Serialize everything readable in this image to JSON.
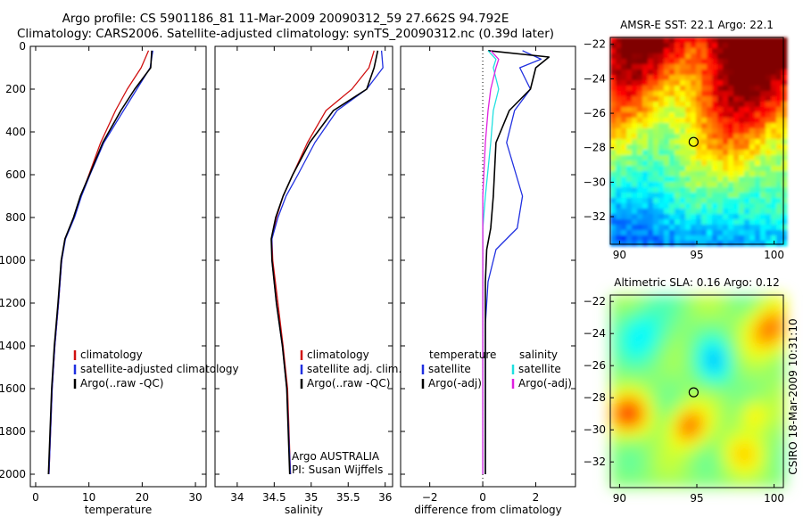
{
  "header": {
    "title_line1": "Argo profile: CS 5901186_81 11-Mar-2009 20090312_59 27.662S 94.792E",
    "title_line2": "Climatology: CARS2006. Satellite-adjusted climatology: synTS_20090312.nc (0.39d later)"
  },
  "colors": {
    "climatology": "#d01010",
    "satellite": "#2030e0",
    "argo": "#000000",
    "satellite_salinity": "#20e0e0",
    "argo_salinity_adj": "#e020e0"
  },
  "chart_data": [
    {
      "name": "temperature_panel",
      "type": "line",
      "xlabel": "temperature",
      "ylabel": "",
      "xlim": [
        -1,
        32
      ],
      "ylim": [
        2050,
        0
      ],
      "xticks": [
        0,
        10,
        20,
        30
      ],
      "yticks": [
        0,
        200,
        400,
        600,
        800,
        1000,
        1200,
        1400,
        1600,
        1800,
        2000
      ],
      "legend_position": "middle-center",
      "legend": [
        "climatology",
        "satellite-adjusted climatology",
        "Argo(..raw -QC)"
      ],
      "series": [
        {
          "name": "climatology",
          "color_key": "climatology",
          "x": [
            21.2,
            19.8,
            17.2,
            15.0,
            12.2,
            10.0,
            8.5,
            7.2,
            5.5,
            4.9,
            4.3,
            3.6,
            3.1,
            2.8,
            2.5
          ],
          "y": [
            20,
            100,
            200,
            300,
            450,
            600,
            700,
            800,
            900,
            1000,
            1200,
            1400,
            1600,
            1800,
            2000
          ]
        },
        {
          "name": "satellite-adjusted climatology",
          "color_key": "satellite",
          "x": [
            22.0,
            21.5,
            19.0,
            16.5,
            12.8,
            10.2,
            8.6,
            7.3,
            5.6,
            4.9,
            4.3,
            3.6,
            3.1,
            2.8,
            2.5
          ],
          "y": [
            20,
            100,
            200,
            300,
            450,
            600,
            700,
            800,
            900,
            1000,
            1200,
            1400,
            1600,
            1800,
            2000
          ]
        },
        {
          "name": "Argo(..raw -QC)",
          "color_key": "argo",
          "x": [
            21.8,
            21.6,
            18.6,
            16.0,
            12.6,
            10.1,
            8.4,
            7.1,
            5.5,
            4.8,
            4.2,
            3.5,
            3.0,
            2.7,
            2.4
          ],
          "y": [
            20,
            100,
            200,
            300,
            450,
            600,
            700,
            800,
            900,
            1000,
            1200,
            1400,
            1600,
            1800,
            2000
          ]
        }
      ]
    },
    {
      "name": "salinity_panel",
      "type": "line",
      "xlabel": "salinity",
      "ylabel": "",
      "xlim": [
        33.7,
        36.1
      ],
      "ylim": [
        2050,
        0
      ],
      "xticks": [
        34,
        34.5,
        35,
        35.5,
        36
      ],
      "xtick_labels": [
        "34",
        "34.5",
        "35",
        "35.5",
        "36"
      ],
      "legend_position": "middle-right",
      "legend": [
        "climatology",
        "satellite adj. clim.",
        "Argo(..raw -QC)"
      ],
      "annotation": [
        "Argo AUSTRALIA",
        "PI: Susan Wijffels"
      ],
      "series": [
        {
          "name": "climatology",
          "color_key": "climatology",
          "x": [
            35.85,
            35.78,
            35.55,
            35.2,
            34.95,
            34.75,
            34.62,
            34.53,
            34.47,
            34.48,
            34.55,
            34.62,
            34.68,
            34.72
          ],
          "y": [
            20,
            100,
            200,
            300,
            450,
            600,
            700,
            800,
            900,
            1000,
            1200,
            1400,
            1600,
            2000
          ]
        },
        {
          "name": "satellite adj. clim.",
          "color_key": "satellite",
          "x": [
            35.95,
            35.97,
            35.75,
            35.35,
            35.05,
            34.82,
            34.66,
            34.55,
            34.47,
            34.47,
            34.53,
            34.61,
            34.67,
            34.72
          ],
          "y": [
            20,
            100,
            200,
            300,
            450,
            600,
            700,
            800,
            900,
            1000,
            1200,
            1400,
            1600,
            2000
          ]
        },
        {
          "name": "Argo(..raw -QC)",
          "color_key": "argo",
          "x": [
            35.9,
            35.85,
            35.75,
            35.3,
            34.98,
            34.75,
            34.62,
            34.52,
            34.46,
            34.47,
            34.53,
            34.61,
            34.67,
            34.71
          ],
          "y": [
            20,
            100,
            200,
            300,
            450,
            600,
            700,
            800,
            900,
            1000,
            1200,
            1400,
            1600,
            2000
          ]
        }
      ]
    },
    {
      "name": "difference_panel",
      "type": "line",
      "xlabel": "difference from climatology",
      "ylabel": "",
      "xlim": [
        -3.1,
        3.5
      ],
      "ylim": [
        2050,
        0
      ],
      "xticks": [
        -2,
        0,
        2
      ],
      "legend_position": "middle-center",
      "legend_left_title": "temperature",
      "legend_right_title": "salinity",
      "legend": [
        "satellite",
        "Argo(-adj)",
        "satellite",
        "Argo(-adj)"
      ],
      "series": [
        {
          "name": "temperature satellite",
          "color_key": "satellite",
          "x": [
            1.5,
            2.2,
            1.4,
            1.8,
            1.2,
            0.9,
            1.5,
            1.3,
            0.5,
            0.2,
            0.1,
            0.1,
            0.1,
            0.1
          ],
          "y": [
            20,
            60,
            100,
            200,
            300,
            450,
            700,
            850,
            950,
            1100,
            1300,
            1600,
            1800,
            2000
          ]
        },
        {
          "name": "temperature Argo(-adj)",
          "color_key": "argo",
          "x": [
            0.2,
            2.5,
            2.0,
            1.8,
            1.0,
            0.5,
            0.4,
            0.3,
            0.15,
            0.1,
            0.1,
            0.1,
            0.1,
            0.1
          ],
          "y": [
            20,
            50,
            100,
            200,
            300,
            450,
            700,
            850,
            950,
            1100,
            1300,
            1600,
            1800,
            2000
          ]
        },
        {
          "name": "salinity satellite",
          "color_key": "satellite_salinity",
          "x": [
            0.2,
            0.5,
            0.4,
            0.6,
            0.4,
            0.3,
            0.1,
            0.0,
            0.0,
            0.0,
            0.0,
            0.0
          ],
          "y": [
            20,
            60,
            100,
            200,
            300,
            450,
            700,
            850,
            1000,
            1300,
            1600,
            2000
          ]
        },
        {
          "name": "salinity Argo(-adj)",
          "color_key": "argo_salinity_adj",
          "x": [
            0.3,
            0.6,
            0.5,
            0.3,
            0.2,
            0.1,
            0.0,
            0.0,
            0.0,
            0.0
          ],
          "y": [
            20,
            60,
            100,
            200,
            300,
            450,
            700,
            850,
            1000,
            2000
          ]
        }
      ]
    },
    {
      "name": "sst_map",
      "type": "heatmap",
      "title": "AMSR-E SST: 22.1 Argo: 22.1",
      "xlim": [
        89.4,
        100.6
      ],
      "ylim": [
        -33.6,
        -21.6
      ],
      "xticks": [
        90,
        95,
        100
      ],
      "yticks": [
        -22,
        -24,
        -26,
        -28,
        -30,
        -32
      ],
      "float_marker": {
        "lon": 94.792,
        "lat": -27.662
      }
    },
    {
      "name": "sla_map",
      "type": "heatmap",
      "title": "Altimetric SLA: 0.16 Argo: 0.12",
      "side_label": "CSIRO 18-Mar-2009 10:31:10",
      "xlim": [
        89.4,
        100.6
      ],
      "ylim": [
        -33.6,
        -21.6
      ],
      "xticks": [
        90,
        95,
        100
      ],
      "yticks": [
        -22,
        -24,
        -26,
        -28,
        -30,
        -32
      ],
      "float_marker": {
        "lon": 94.792,
        "lat": -27.662
      }
    }
  ]
}
